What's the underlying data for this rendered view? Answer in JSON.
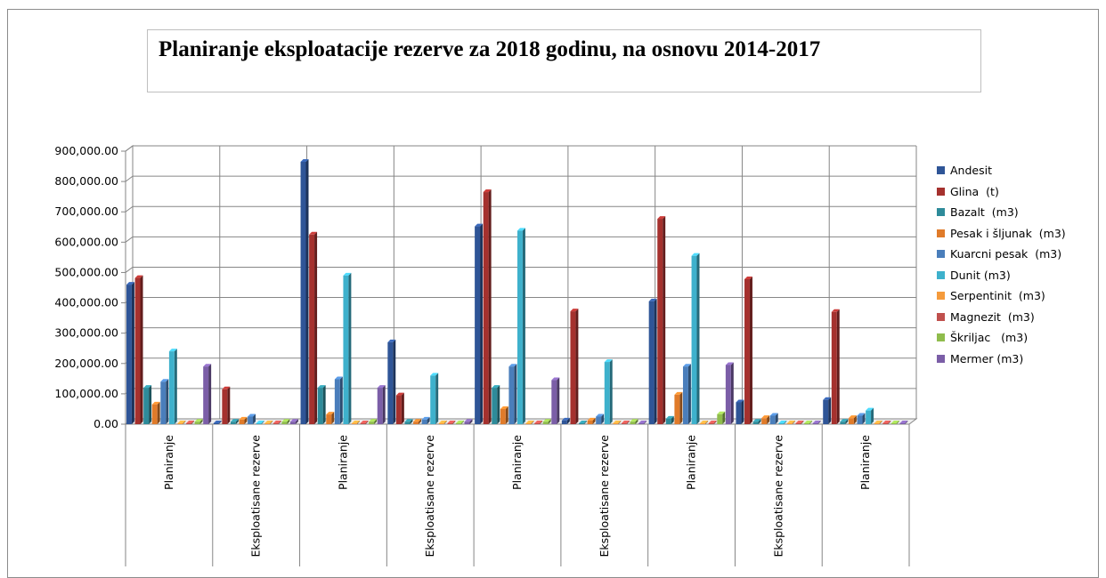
{
  "chart_data": {
    "type": "bar",
    "title": "Planiranje eksploatacije rezerve za 2018 godinu, na osnovu 2014-2017",
    "categories": [
      "Planiranje",
      "Eksploatisane rezerve",
      "Planiranje",
      "Eksploatisane rezerve",
      "Planiranje",
      "Eksploatisane rezerve",
      "Planiranje",
      "Eksploatisane rezerve",
      "Planiranje"
    ],
    "ylim": [
      0,
      900000
    ],
    "yticks": [
      "0.00",
      "100,000.00",
      "200,000.00",
      "300,000.00",
      "400,000.00",
      "500,000.00",
      "600,000.00",
      "700,000.00",
      "800,000.00",
      "900,000.00"
    ],
    "grid": true,
    "legend_position": "right",
    "series": [
      {
        "name": "Andesit",
        "color": "#2f5597",
        "values": [
          460000,
          3000,
          865000,
          270000,
          652000,
          12000,
          405000,
          72000,
          80000
        ]
      },
      {
        "name": "Glina  (t)",
        "color": "#a5312e",
        "values": [
          482000,
          115000,
          625000,
          95000,
          765000,
          372000,
          677000,
          478000,
          370000
        ]
      },
      {
        "name": "Bazalt  (m3)",
        "color": "#2e8b9a",
        "values": [
          120000,
          8000,
          120000,
          8000,
          120000,
          3000,
          18000,
          8000,
          8000
        ]
      },
      {
        "name": "Pesak i šljunak  (m3)",
        "color": "#e07b2a",
        "values": [
          65000,
          15000,
          32000,
          8000,
          50000,
          12000,
          97000,
          20000,
          20000
        ]
      },
      {
        "name": "Kuarcni pesak  (m3)",
        "color": "#4a7ebb",
        "values": [
          140000,
          25000,
          148000,
          15000,
          190000,
          25000,
          190000,
          28000,
          28000
        ]
      },
      {
        "name": "Dunit (m3)",
        "color": "#3eb1cc",
        "values": [
          240000,
          2000,
          490000,
          160000,
          638000,
          205000,
          555000,
          2000,
          45000
        ]
      },
      {
        "name": "Serpentinit  (m3)",
        "color": "#f59b3c",
        "values": [
          2000,
          1000,
          2000,
          1000,
          2000,
          1000,
          2000,
          1000,
          1000
        ]
      },
      {
        "name": "Magnezit  (m3)",
        "color": "#c0504d",
        "values": [
          2000,
          2000,
          2000,
          2000,
          2000,
          2000,
          2000,
          2000,
          2000
        ]
      },
      {
        "name": "Škriljac   (m3)",
        "color": "#8fbc4c",
        "values": [
          8000,
          8000,
          8000,
          3000,
          8000,
          8000,
          33000,
          2000,
          2000
        ]
      },
      {
        "name": "Mermer (m3)",
        "color": "#7b5ea7",
        "values": [
          190000,
          8000,
          120000,
          8000,
          145000,
          3000,
          195000,
          2000,
          2000
        ]
      }
    ]
  }
}
